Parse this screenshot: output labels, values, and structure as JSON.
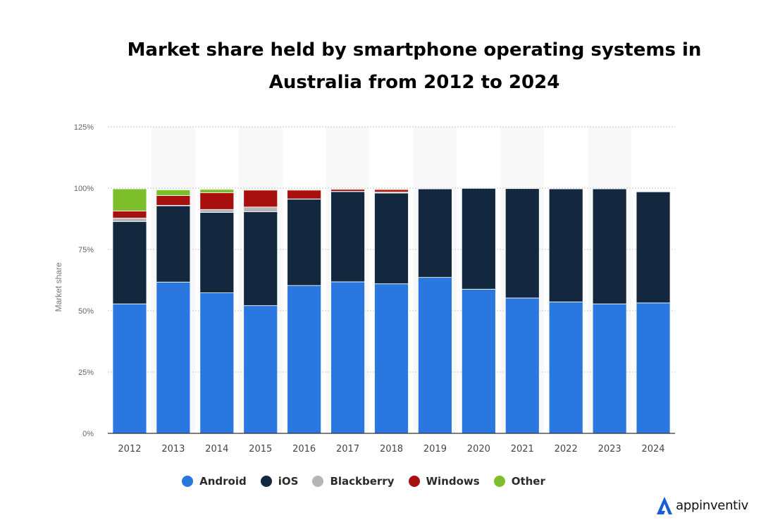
{
  "chart_data": {
    "type": "bar",
    "stacked": true,
    "title": "Market share held by smartphone operating systems in Australia from 2012 to 2024",
    "title_lines": [
      "Market share held by smartphone operating systems in",
      "Australia from 2012 to 2024"
    ],
    "xlabel": "",
    "ylabel": "Market share",
    "ylim": [
      0,
      125
    ],
    "yticks": [
      0,
      25,
      50,
      75,
      100,
      125
    ],
    "ytick_labels": [
      "0%",
      "25%",
      "50%",
      "75%",
      "100%",
      "125%"
    ],
    "grid": true,
    "legend_position": "bottom",
    "categories": [
      "2012",
      "2013",
      "2014",
      "2015",
      "2016",
      "2017",
      "2018",
      "2019",
      "2020",
      "2021",
      "2022",
      "2023",
      "2024"
    ],
    "series": [
      {
        "name": "Android",
        "color": "#2a77e0",
        "values": [
          52.8,
          61.7,
          57.3,
          52.1,
          60.3,
          61.8,
          61.0,
          63.6,
          58.8,
          55.2,
          53.6,
          52.8,
          53.2
        ]
      },
      {
        "name": "iOS",
        "color": "#13283f",
        "values": [
          33.6,
          31.1,
          32.8,
          38.3,
          35.2,
          36.8,
          37.0,
          36.1,
          41.1,
          44.6,
          46.1,
          46.9,
          45.3
        ]
      },
      {
        "name": "Blackberry",
        "color": "#b5b5b5",
        "values": [
          1.4,
          0.2,
          1.2,
          1.9,
          0.1,
          0.1,
          0.4,
          0.0,
          0.0,
          0.0,
          0.0,
          0.0,
          0.0
        ]
      },
      {
        "name": "Windows",
        "color": "#a80f0f",
        "values": [
          2.9,
          4.0,
          6.8,
          6.9,
          3.6,
          0.8,
          1.0,
          0.1,
          0.0,
          0.0,
          0.0,
          0.0,
          0.0
        ]
      },
      {
        "name": "Other",
        "color": "#7cbf2a",
        "values": [
          9.0,
          2.3,
          1.4,
          0.3,
          0.3,
          0.0,
          0.3,
          0.0,
          0.0,
          0.0,
          0.0,
          0.0,
          0.0
        ]
      }
    ]
  },
  "brand": {
    "name": "appinventiv",
    "color": "#1a5bd8"
  }
}
